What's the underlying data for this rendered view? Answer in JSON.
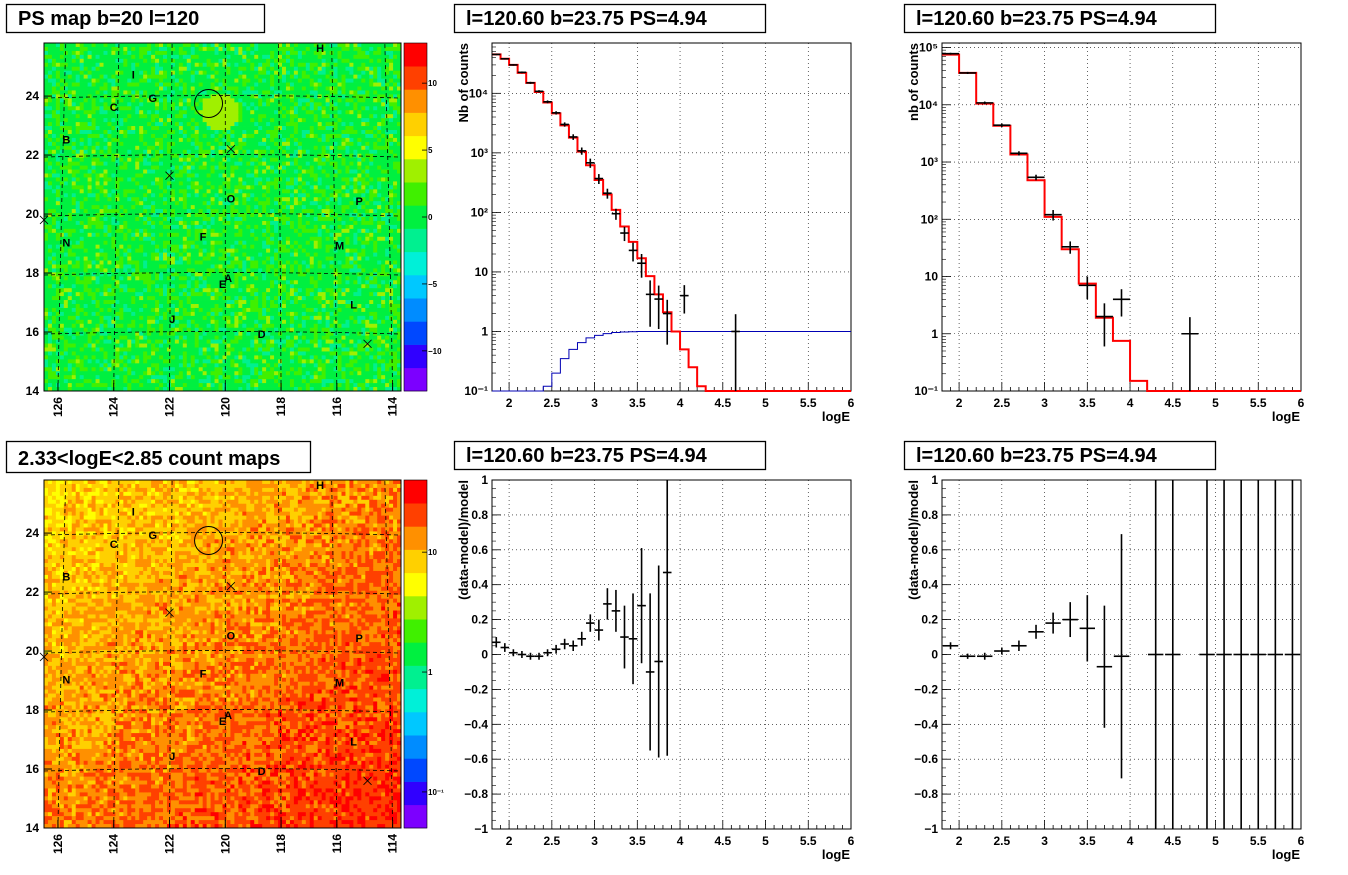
{
  "chart_data": [
    {
      "id": "ps-map",
      "type": "heatmap",
      "title": "PS map b=20 l=120",
      "x_ticks": [
        "126",
        "124",
        "122",
        "120",
        "118",
        "116",
        "114"
      ],
      "y_ticks": [
        "14",
        "16",
        "18",
        "20",
        "22",
        "24"
      ],
      "xlim": [
        126.5,
        113.7
      ],
      "ylim": [
        14,
        25.8
      ],
      "colorbar_ticks": [
        "10",
        "5",
        "0",
        "−5",
        "−10"
      ],
      "colorbar_values": [
        10,
        5,
        0,
        -5,
        -10
      ],
      "colorbar_range": [
        -13,
        13
      ],
      "palette": [
        "#7c00ff",
        "#3000ff",
        "#0048ff",
        "#008cff",
        "#00c8ff",
        "#00f0d8",
        "#00f090",
        "#00f040",
        "#40f000",
        "#a0f000",
        "#ffff00",
        "#ffd000",
        "#ff9000",
        "#ff4000",
        "#ff0000"
      ],
      "sources": [
        {
          "label": "H",
          "l": 116.6,
          "b": 25.5
        },
        {
          "label": "I",
          "l": 123.3,
          "b": 24.6
        },
        {
          "label": "G",
          "l": 122.6,
          "b": 23.8
        },
        {
          "label": "C",
          "l": 124.0,
          "b": 23.5
        },
        {
          "label": "B",
          "l": 125.7,
          "b": 22.4
        },
        {
          "label": "O",
          "l": 119.8,
          "b": 20.4
        },
        {
          "label": "P",
          "l": 115.2,
          "b": 20.3
        },
        {
          "label": "N",
          "l": 125.7,
          "b": 18.9
        },
        {
          "label": "F",
          "l": 120.8,
          "b": 19.1
        },
        {
          "label": "M",
          "l": 115.9,
          "b": 18.8
        },
        {
          "label": "A",
          "l": 119.9,
          "b": 17.7
        },
        {
          "label": "E",
          "l": 120.1,
          "b": 17.5
        },
        {
          "label": "L",
          "l": 115.4,
          "b": 16.8
        },
        {
          "label": "J",
          "l": 121.9,
          "b": 16.3
        },
        {
          "label": "D",
          "l": 118.7,
          "b": 15.8
        }
      ],
      "crosses": [
        {
          "l": 119.8,
          "b": 22.2
        },
        {
          "l": 122.0,
          "b": 21.3
        },
        {
          "l": 126.5,
          "b": 19.8
        },
        {
          "l": 114.9,
          "b": 15.6
        }
      ],
      "circle": {
        "l": 120.6,
        "b": 23.75
      }
    },
    {
      "id": "count-map",
      "type": "heatmap",
      "title": "2.33<logE<2.85 count maps",
      "x_ticks": [
        "126",
        "124",
        "122",
        "120",
        "118",
        "116",
        "114"
      ],
      "y_ticks": [
        "14",
        "16",
        "18",
        "20",
        "22",
        "24"
      ],
      "xlim": [
        126.5,
        113.7
      ],
      "ylim": [
        14,
        25.8
      ],
      "colorbar_ticks": [
        "10",
        "1",
        "10⁻¹"
      ],
      "colorbar_values": [
        10,
        1,
        0.1
      ],
      "colorbar_log": true,
      "colorbar_range": [
        0.05,
        40
      ],
      "palette": [
        "#7c00ff",
        "#3000ff",
        "#0048ff",
        "#008cff",
        "#00c8ff",
        "#00f0d8",
        "#00f090",
        "#00f040",
        "#40f000",
        "#a0f000",
        "#ffff00",
        "#ffd000",
        "#ff9000",
        "#ff4000",
        "#ff0000"
      ],
      "sources": [
        {
          "label": "H",
          "l": 116.6,
          "b": 25.5
        },
        {
          "label": "I",
          "l": 123.3,
          "b": 24.6
        },
        {
          "label": "G",
          "l": 122.6,
          "b": 23.8
        },
        {
          "label": "C",
          "l": 124.0,
          "b": 23.5
        },
        {
          "label": "B",
          "l": 125.7,
          "b": 22.4
        },
        {
          "label": "O",
          "l": 119.8,
          "b": 20.4
        },
        {
          "label": "P",
          "l": 115.2,
          "b": 20.3
        },
        {
          "label": "N",
          "l": 125.7,
          "b": 18.9
        },
        {
          "label": "F",
          "l": 120.8,
          "b": 19.1
        },
        {
          "label": "M",
          "l": 115.9,
          "b": 18.8
        },
        {
          "label": "A",
          "l": 119.9,
          "b": 17.7
        },
        {
          "label": "E",
          "l": 120.1,
          "b": 17.5
        },
        {
          "label": "L",
          "l": 115.4,
          "b": 16.8
        },
        {
          "label": "J",
          "l": 121.9,
          "b": 16.3
        },
        {
          "label": "D",
          "l": 118.7,
          "b": 15.8
        }
      ],
      "crosses": [
        {
          "l": 119.8,
          "b": 22.2
        },
        {
          "l": 122.0,
          "b": 21.3
        },
        {
          "l": 126.5,
          "b": 19.8
        },
        {
          "l": 114.9,
          "b": 15.6
        }
      ],
      "circle": {
        "l": 120.6,
        "b": 23.75
      }
    },
    {
      "id": "spectrum-fine",
      "type": "line",
      "title": "l=120.60 b=23.75 PS=4.94",
      "xlabel": "logE",
      "ylabel": "Nb of counts",
      "xlim": [
        1.8,
        6
      ],
      "ylim": [
        0.1,
        70000
      ],
      "ylog": true,
      "x_ticks": [
        "2",
        "2.5",
        "3",
        "3.5",
        "4",
        "4.5",
        "5",
        "5.5",
        "6"
      ],
      "y_ticks": [
        "10⁻¹",
        "1",
        "10",
        "10²",
        "10³",
        "10⁴"
      ],
      "y_tick_values": [
        0.1,
        1,
        10,
        100,
        1000,
        10000
      ],
      "model_edges": [
        1.8,
        1.9,
        2.0,
        2.1,
        2.2,
        2.3,
        2.4,
        2.5,
        2.6,
        2.7,
        2.8,
        2.9,
        3.0,
        3.1,
        3.2,
        3.3,
        3.4,
        3.5,
        3.6,
        3.7,
        3.8,
        3.9,
        4.0,
        4.1,
        4.2,
        4.3,
        4.4,
        4.5,
        4.6,
        4.7,
        4.8,
        4.9,
        5.0,
        5.1,
        5.2,
        5.3,
        5.4,
        5.5,
        5.6,
        5.7,
        5.8,
        5.9,
        6.0
      ],
      "model_values": [
        45000,
        38000,
        30000,
        22000,
        15000,
        10500,
        7000,
        4600,
        2900,
        1800,
        1050,
        620,
        350,
        200,
        110,
        58,
        32,
        17,
        8.5,
        4.2,
        2.1,
        1.0,
        0.5,
        0.25,
        0.12,
        0.1,
        0.1,
        0.1,
        0.1,
        0.1,
        0.1,
        0.1,
        0.1,
        0.1,
        0.1,
        0.1,
        0.1,
        0.1,
        0.1,
        0.1,
        0.1,
        0.1
      ],
      "efficiency_values": [
        0.1,
        0.1,
        0.1,
        0.1,
        0.1,
        0.1,
        0.12,
        0.2,
        0.35,
        0.5,
        0.65,
        0.78,
        0.86,
        0.92,
        0.96,
        0.98,
        0.99,
        1,
        1,
        1,
        1,
        1,
        1,
        1,
        1,
        1,
        1,
        1,
        1,
        1,
        1,
        1,
        1,
        1,
        1,
        1,
        1,
        1,
        1,
        1,
        1,
        1,
        1
      ],
      "data_points": [
        {
          "x": 1.85,
          "y": 45000,
          "err": 1200
        },
        {
          "x": 1.95,
          "y": 38000,
          "err": 1100
        },
        {
          "x": 2.05,
          "y": 30000,
          "err": 900
        },
        {
          "x": 2.15,
          "y": 22500,
          "err": 800
        },
        {
          "x": 2.25,
          "y": 15000,
          "err": 600
        },
        {
          "x": 2.35,
          "y": 10800,
          "err": 500
        },
        {
          "x": 2.45,
          "y": 7200,
          "err": 400
        },
        {
          "x": 2.55,
          "y": 4700,
          "err": 300
        },
        {
          "x": 2.65,
          "y": 3000,
          "err": 250
        },
        {
          "x": 2.75,
          "y": 1850,
          "err": 200
        },
        {
          "x": 2.85,
          "y": 1080,
          "err": 150
        },
        {
          "x": 2.95,
          "y": 680,
          "err": 120
        },
        {
          "x": 3.05,
          "y": 370,
          "err": 70
        },
        {
          "x": 3.15,
          "y": 210,
          "err": 40
        },
        {
          "x": 3.25,
          "y": 95,
          "err": 20
        },
        {
          "x": 3.35,
          "y": 45,
          "err": 12
        },
        {
          "x": 3.45,
          "y": 23,
          "err": 8
        },
        {
          "x": 3.55,
          "y": 14,
          "err": 6
        },
        {
          "x": 3.65,
          "y": 4.2,
          "err": 3
        },
        {
          "x": 3.75,
          "y": 3.5,
          "err": 2.4
        },
        {
          "x": 3.85,
          "y": 2,
          "err": 1.4
        },
        {
          "x": 4.05,
          "y": 4,
          "err": 2
        },
        {
          "x": 4.65,
          "y": 1,
          "err": 0.95
        }
      ]
    },
    {
      "id": "spectrum-coarse",
      "type": "line",
      "title": "l=120.60 b=23.75 PS=4.94",
      "xlabel": "logE",
      "ylabel": "nb of counts",
      "xlim": [
        1.8,
        6
      ],
      "ylim": [
        0.1,
        120000
      ],
      "ylog": true,
      "x_ticks": [
        "2",
        "2.5",
        "3",
        "3.5",
        "4",
        "4.5",
        "5",
        "5.5",
        "6"
      ],
      "y_ticks": [
        "10⁻¹",
        "1",
        "10",
        "10²",
        "10³",
        "10⁴",
        "10⁵"
      ],
      "y_tick_values": [
        0.1,
        1,
        10,
        100,
        1000,
        10000,
        100000
      ],
      "model_edges": [
        1.8,
        2.0,
        2.2,
        2.4,
        2.6,
        2.8,
        3.0,
        3.2,
        3.4,
        3.6,
        3.8,
        4.0,
        4.2,
        4.4,
        4.6,
        4.8,
        5.0,
        5.2,
        5.4,
        5.6,
        5.8,
        6.0
      ],
      "model_values": [
        75000,
        36000,
        10500,
        4300,
        1350,
        480,
        110,
        30,
        7.5,
        1.9,
        0.75,
        0.15,
        0.1,
        0.1,
        0.1,
        0.1,
        0.1,
        0.1,
        0.1,
        0.1,
        0.1
      ],
      "data_points": [
        {
          "x": 1.9,
          "y": 78000,
          "err": 3000
        },
        {
          "x": 2.1,
          "y": 36000,
          "err": 1500
        },
        {
          "x": 2.3,
          "y": 10800,
          "err": 600
        },
        {
          "x": 2.5,
          "y": 4400,
          "err": 300
        },
        {
          "x": 2.7,
          "y": 1420,
          "err": 120
        },
        {
          "x": 2.9,
          "y": 540,
          "err": 60
        },
        {
          "x": 3.1,
          "y": 120,
          "err": 25
        },
        {
          "x": 3.3,
          "y": 33,
          "err": 8
        },
        {
          "x": 3.5,
          "y": 7,
          "err": 3
        },
        {
          "x": 3.7,
          "y": 2,
          "err": 1.4
        },
        {
          "x": 3.9,
          "y": 4,
          "err": 2
        },
        {
          "x": 4.7,
          "y": 1,
          "err": 0.95
        }
      ]
    },
    {
      "id": "residual-fine",
      "type": "scatter",
      "title": "l=120.60 b=23.75 PS=4.94",
      "xlabel": "logE",
      "ylabel": "(data-model)/model",
      "xlim": [
        1.8,
        6
      ],
      "ylim": [
        -1,
        1
      ],
      "x_ticks": [
        "2",
        "2.5",
        "3",
        "3.5",
        "4",
        "4.5",
        "5",
        "5.5",
        "6"
      ],
      "y_ticks": [
        "−1",
        "−0.8",
        "−0.6",
        "−0.4",
        "−0.2",
        "0",
        "0.2",
        "0.4",
        "0.6",
        "0.8",
        "1"
      ],
      "y_tick_values": [
        -1,
        -0.8,
        -0.6,
        -0.4,
        -0.2,
        0,
        0.2,
        0.4,
        0.6,
        0.8,
        1
      ],
      "data_points": [
        {
          "x": 1.85,
          "y": 0.07,
          "err": 0.03
        },
        {
          "x": 1.95,
          "y": 0.04,
          "err": 0.025
        },
        {
          "x": 2.05,
          "y": 0.01,
          "err": 0.02
        },
        {
          "x": 2.15,
          "y": 0,
          "err": 0.02
        },
        {
          "x": 2.25,
          "y": -0.01,
          "err": 0.02
        },
        {
          "x": 2.35,
          "y": -0.01,
          "err": 0.02
        },
        {
          "x": 2.45,
          "y": 0.01,
          "err": 0.02
        },
        {
          "x": 2.55,
          "y": 0.03,
          "err": 0.025
        },
        {
          "x": 2.65,
          "y": 0.06,
          "err": 0.03
        },
        {
          "x": 2.75,
          "y": 0.05,
          "err": 0.03
        },
        {
          "x": 2.85,
          "y": 0.09,
          "err": 0.04
        },
        {
          "x": 2.95,
          "y": 0.18,
          "err": 0.05
        },
        {
          "x": 3.05,
          "y": 0.14,
          "err": 0.06
        },
        {
          "x": 3.15,
          "y": 0.29,
          "err": 0.09
        },
        {
          "x": 3.25,
          "y": 0.25,
          "err": 0.12
        },
        {
          "x": 3.35,
          "y": 0.1,
          "err": 0.18
        },
        {
          "x": 3.45,
          "y": 0.09,
          "err": 0.26
        },
        {
          "x": 3.55,
          "y": 0.28,
          "err": 0.33
        },
        {
          "x": 3.65,
          "y": -0.1,
          "err": 0.45
        },
        {
          "x": 3.75,
          "y": -0.04,
          "err": 0.55
        },
        {
          "x": 3.85,
          "y": 0.47,
          "err": 1.05
        }
      ]
    },
    {
      "id": "residual-coarse",
      "type": "scatter",
      "title": "l=120.60 b=23.75 PS=4.94",
      "xlabel": "logE",
      "ylabel": "(data-model)/model",
      "xlim": [
        1.8,
        6
      ],
      "ylim": [
        -1,
        1
      ],
      "x_ticks": [
        "2",
        "2.5",
        "3",
        "3.5",
        "4",
        "4.5",
        "5",
        "5.5",
        "6"
      ],
      "y_ticks": [
        "−1",
        "−0.8",
        "−0.6",
        "−0.4",
        "−0.2",
        "0",
        "0.2",
        "0.4",
        "0.6",
        "0.8",
        "1"
      ],
      "y_tick_values": [
        -1,
        -0.8,
        -0.6,
        -0.4,
        -0.2,
        0,
        0.2,
        0.4,
        0.6,
        0.8,
        1
      ],
      "data_points": [
        {
          "x": 1.9,
          "y": 0.05,
          "err": 0.02
        },
        {
          "x": 2.1,
          "y": -0.01,
          "err": 0.015
        },
        {
          "x": 2.3,
          "y": -0.01,
          "err": 0.02
        },
        {
          "x": 2.5,
          "y": 0.02,
          "err": 0.02
        },
        {
          "x": 2.7,
          "y": 0.05,
          "err": 0.03
        },
        {
          "x": 2.9,
          "y": 0.13,
          "err": 0.04
        },
        {
          "x": 3.1,
          "y": 0.18,
          "err": 0.06
        },
        {
          "x": 3.3,
          "y": 0.2,
          "err": 0.1
        },
        {
          "x": 3.5,
          "y": 0.15,
          "err": 0.19
        },
        {
          "x": 3.7,
          "y": -0.07,
          "err": 0.35
        },
        {
          "x": 3.9,
          "y": -0.01,
          "err": 0.7
        },
        {
          "x": 4.3,
          "y": 0,
          "err": 2
        },
        {
          "x": 4.5,
          "y": 0,
          "err": 2
        },
        {
          "x": 4.9,
          "y": 0,
          "err": 2
        },
        {
          "x": 5.1,
          "y": 0,
          "err": 2
        },
        {
          "x": 5.3,
          "y": 0,
          "err": 2
        },
        {
          "x": 5.5,
          "y": 0,
          "err": 2
        },
        {
          "x": 5.7,
          "y": 0,
          "err": 2
        },
        {
          "x": 5.9,
          "y": 0,
          "err": 2
        }
      ]
    }
  ]
}
